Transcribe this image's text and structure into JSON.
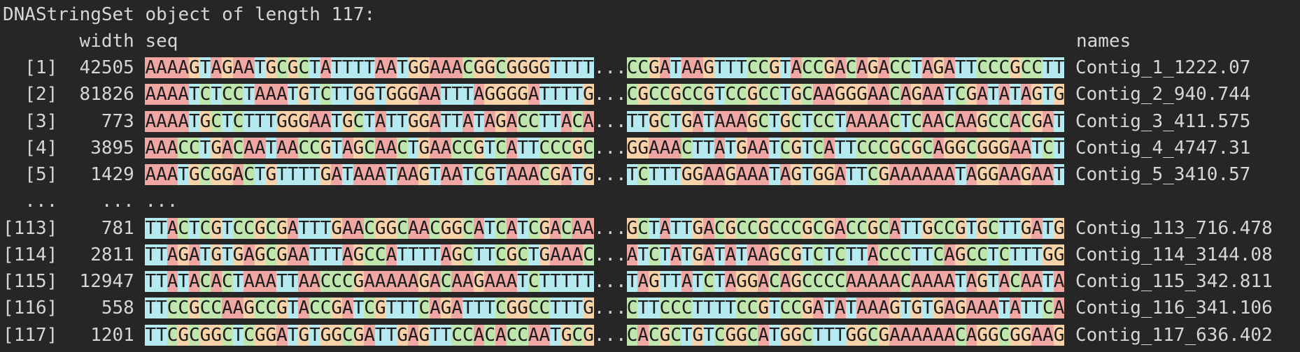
{
  "header": "DNAStringSet object of length 117:",
  "columns": {
    "width": "width",
    "seq": "seq",
    "names": "names"
  },
  "rows": [
    {
      "index": "[1]",
      "width": 42505,
      "seq_start": "AAAAGTAGAATGCGCTATTTTAATGGAAACGGCGGGGTTTT",
      "gap": "...",
      "seq_end": "CCGATAAGTTTCCGTACCGACAGACCTAGATTCCCGCCTT",
      "name": "Contig_1_1222.07"
    },
    {
      "index": "[2]",
      "width": 81826,
      "seq_start": "AAAATCTCCTAAATGTCTTGGTGGGAATTTAGGGGATTTTG",
      "gap": "...",
      "seq_end": "CGCCGCCGTCCGCCTGCAAGGGAACAGAATCGATATAGTG",
      "name": "Contig_2_940.744"
    },
    {
      "index": "[3]",
      "width": 773,
      "seq_start": "AAAATGCTCTTTGGGAATGCTATTGGATTATAGACCTTACA",
      "gap": "...",
      "seq_end": "TTGCTGATAAAGCTGCTCCTAAAACTCAACAAGCCACGAT",
      "name": "Contig_3_411.575"
    },
    {
      "index": "[4]",
      "width": 3895,
      "seq_start": "AAACCTGACAATAACCGTAGCAACTGAACCGTCATTCCCGC",
      "gap": "...",
      "seq_end": "GGAAACTTATGAATCGTCATTCCCGCGCAGGCGGGAATCT",
      "name": "Contig_4_4747.31"
    },
    {
      "index": "[5]",
      "width": 1429,
      "seq_start": "AAATGCGGACTGTTTTGATAAATAAGTAATCGTAAACGATG",
      "gap": "...",
      "seq_end": "TCTTTGGAAGAAATAGTGGATTCGAAAAAATAGGAAGAAT",
      "name": "Contig_5_3410.57"
    },
    {
      "index": "...",
      "width": "...",
      "seq": "..."
    },
    {
      "index": "[113]",
      "width": 781,
      "seq_start": "TTACTCGTCCGCGATTTGAACGGCAACGGCATCATCGACAA",
      "gap": "...",
      "seq_end": "GCTATTGACGCCGCCCGCGACCGCATTGCCGTGCTTGATG",
      "name": "Contig_113_716.478"
    },
    {
      "index": "[114]",
      "width": 2811,
      "seq_start": "TTAGATGTGAGCGAATTTAGCCATTTTAGCTTCGCTGAAAC",
      "gap": "...",
      "seq_end": "ATCTATGATATAAGCGTCTCTTACCCTTCAGCCTCTTTGG",
      "name": "Contig_114_3144.08"
    },
    {
      "index": "[115]",
      "width": 12947,
      "seq_start": "TTATACACTAAATTAACCCGAAAAAGACAAGAAATCTTTTT",
      "gap": "...",
      "seq_end": "TAGTTATCTAGGACAGCCCCAAAAACAAAATAGTACAATA",
      "name": "Contig_115_342.811"
    },
    {
      "index": "[116]",
      "width": 558,
      "seq_start": "TTCCGCCAAGCCGTACCGATCGTTTCAGATTTCGGCCTTTG",
      "gap": "...",
      "seq_end": "CTTCCCTTTTCCGTCCGATATAAAGTGTGAGAAATATTCA",
      "name": "Contig_116_341.106"
    },
    {
      "index": "[117]",
      "width": 1201,
      "seq_start": "TTCGCGGCTCGGATGTGGCGATTGAGTTCCACACCAATGCG",
      "gap": "...",
      "seq_end": "CACGCTGTCGGCATGGCTTTGGCGAAAAAACAGGCGGAAG",
      "name": "Contig_117_636.402"
    }
  ]
}
